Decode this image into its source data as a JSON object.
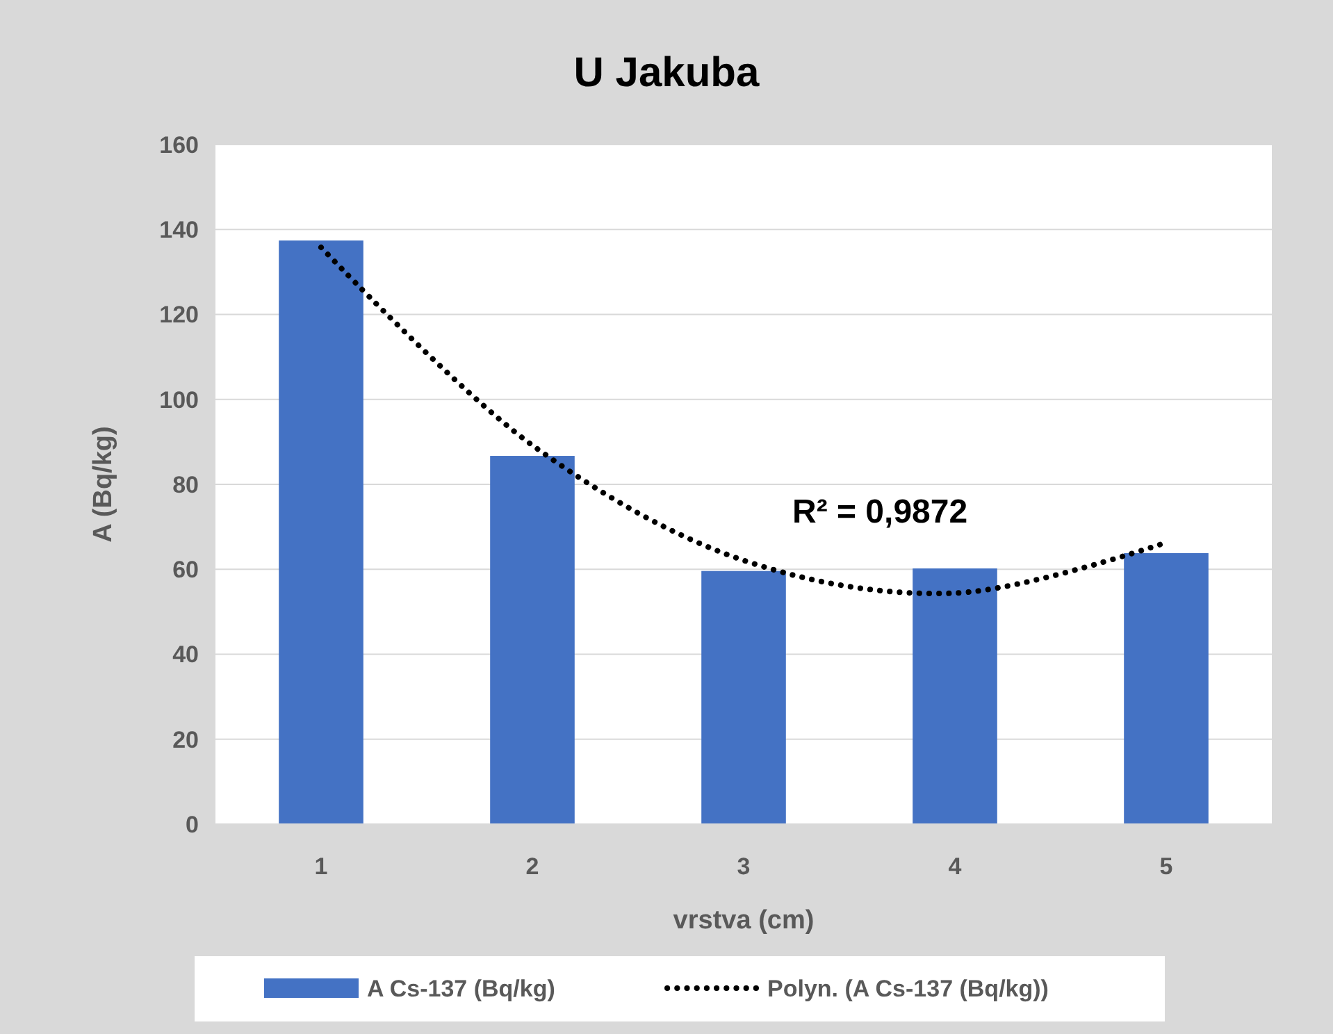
{
  "chart_data": {
    "type": "bar",
    "title": "U Jakuba",
    "xlabel": "vrstva (cm)",
    "ylabel": "A (Bq/kg)",
    "categories": [
      "1",
      "2",
      "3",
      "4",
      "5"
    ],
    "series": [
      {
        "name": "A Cs-137 (Bq/kg)",
        "color": "#4472c4",
        "values": [
          137.4,
          86.7,
          59.6,
          60.2,
          63.8
        ]
      },
      {
        "name": "Polyn. (A Cs-137 (Bq/kg))",
        "type": "line",
        "color": "#000000",
        "line_style": "dotted",
        "marker": "none",
        "values": [
          135.8,
          89.2,
          62.1,
          54.4,
          66.3
        ]
      }
    ],
    "ylim": [
      0,
      160
    ],
    "yticks": [
      0,
      20,
      40,
      60,
      80,
      100,
      120,
      140,
      160
    ],
    "grid": "y",
    "legend": "bottom",
    "annotations": [
      "R² = 0,9872"
    ]
  }
}
